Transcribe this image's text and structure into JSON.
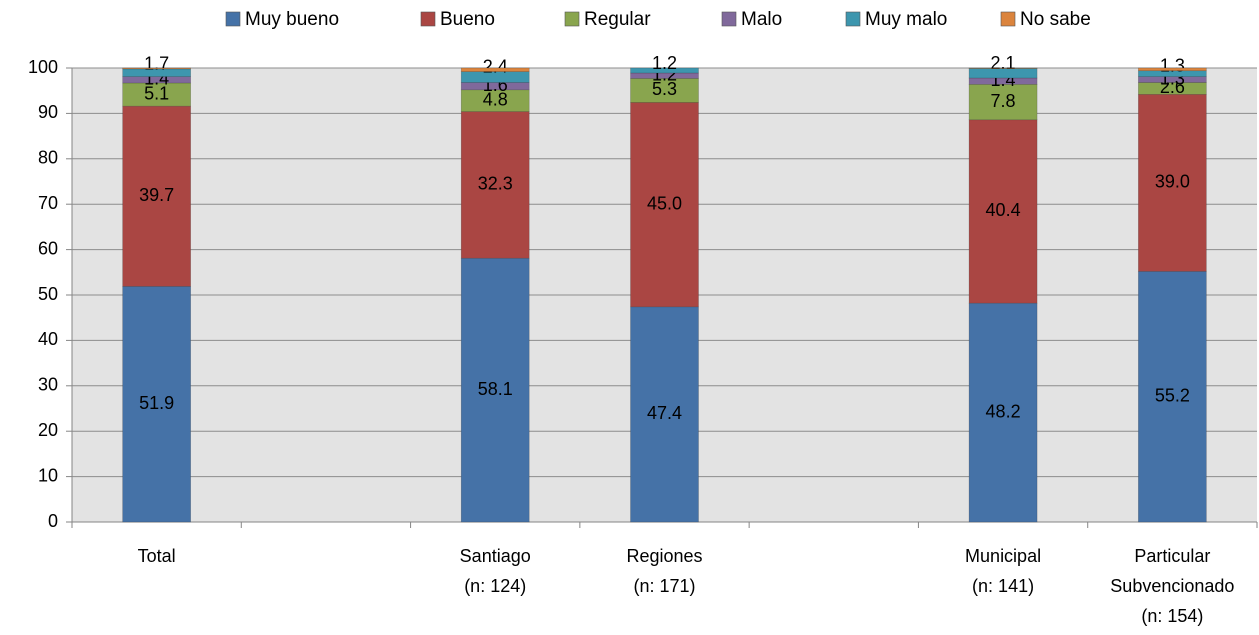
{
  "chart_data": {
    "type": "bar",
    "stacked": true,
    "title": "",
    "xlabel": "",
    "ylabel": "",
    "ylim": [
      0,
      100
    ],
    "yticks": [
      0,
      10,
      20,
      30,
      40,
      50,
      60,
      70,
      80,
      90,
      100
    ],
    "grid": true,
    "legend_position": "top",
    "slots": [
      "Total",
      "",
      "Santiago",
      "Regiones",
      "",
      "Municipal",
      "Particular Subvencionado"
    ],
    "categories": [
      {
        "slot": 0,
        "lines": [
          "Total"
        ]
      },
      {
        "slot": 2,
        "lines": [
          "Santiago",
          "(n: 124)"
        ]
      },
      {
        "slot": 3,
        "lines": [
          "Regiones",
          "(n: 171)"
        ]
      },
      {
        "slot": 5,
        "lines": [
          "Municipal",
          "(n: 141)"
        ]
      },
      {
        "slot": 6,
        "lines": [
          "Particular",
          "Subvencionado",
          "(n: 154)"
        ]
      }
    ],
    "series": [
      {
        "name": "Muy bueno",
        "color": "#4572A7",
        "values": [
          51.9,
          58.1,
          47.4,
          48.2,
          55.2
        ],
        "labels": [
          "51.9",
          "58.1",
          "47.4",
          "48.2",
          "55.2"
        ]
      },
      {
        "name": "Bueno",
        "color": "#AA4643",
        "values": [
          39.7,
          32.3,
          45.0,
          40.4,
          39.0
        ],
        "labels": [
          "39.7",
          "32.3",
          "45.0",
          "40.4",
          "39.0"
        ]
      },
      {
        "name": "Regular",
        "color": "#89A54E",
        "values": [
          5.1,
          4.8,
          5.3,
          7.8,
          2.6
        ],
        "labels": [
          "5.1",
          "4.8",
          "5.3",
          "7.8",
          "2.6"
        ]
      },
      {
        "name": "Malo",
        "color": "#80699B",
        "values": [
          1.4,
          1.6,
          1.2,
          1.4,
          1.3
        ],
        "labels": [
          "1.4",
          "1.6",
          "1.2",
          "1.4",
          "1.3"
        ]
      },
      {
        "name": "Muy malo",
        "color": "#3D96AE",
        "values": [
          1.7,
          2.4,
          1.2,
          2.1,
          1.3
        ],
        "labels": [
          "1.7",
          "2.4",
          "1.2",
          "2.1",
          "1.3"
        ]
      },
      {
        "name": "No sabe",
        "color": "#DB843D",
        "values": [
          0.2,
          0.8,
          0.0,
          0.1,
          0.6
        ],
        "labels": [
          "",
          "",
          "",
          "",
          ""
        ]
      }
    ]
  }
}
